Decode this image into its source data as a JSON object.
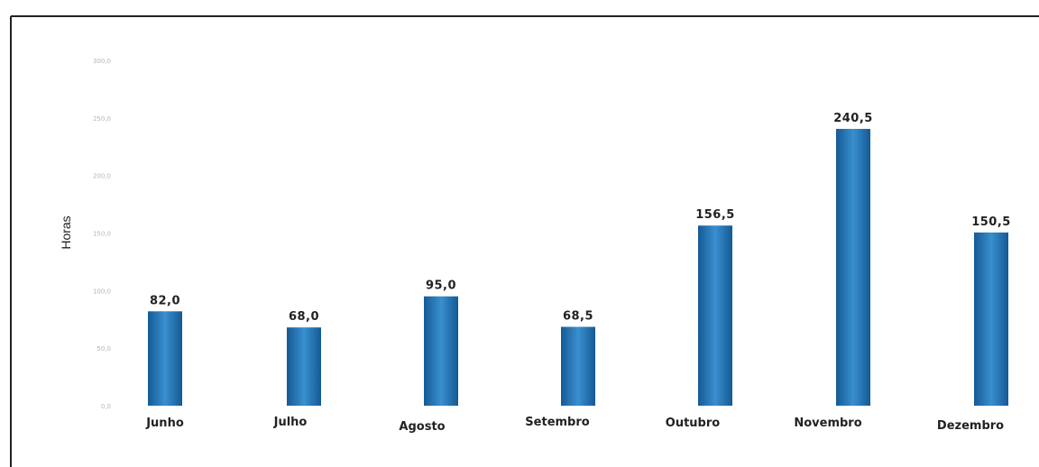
{
  "chart_data": {
    "type": "bar",
    "title": "",
    "xlabel": "",
    "ylabel": "Horas",
    "categories": [
      "Junho",
      "Julho",
      "Agosto",
      "Setembro",
      "Outubro",
      "Novembro",
      "Dezembro"
    ],
    "values": [
      82.0,
      68.0,
      95.0,
      68.5,
      156.5,
      240.5,
      150.5
    ],
    "value_labels": [
      "82,0",
      "68,0",
      "95,0",
      "68,5",
      "156,5",
      "240,5",
      "150,5"
    ],
    "yticks": [
      0,
      50,
      100,
      150,
      200,
      250,
      300
    ],
    "ytick_labels": [
      "0,0",
      "50,0",
      "100,0",
      "150,0",
      "200,0",
      "250,0",
      "300,0"
    ],
    "ylim": [
      0,
      300
    ],
    "grid": false,
    "legend": "none",
    "colors": {
      "bar_top": "#3a8fd0",
      "bar_mid": "#1f78c1",
      "bar_bottom": "#145a94",
      "frame": "#222222",
      "text": "#222222",
      "tick_text": "#b5b5b5"
    }
  }
}
